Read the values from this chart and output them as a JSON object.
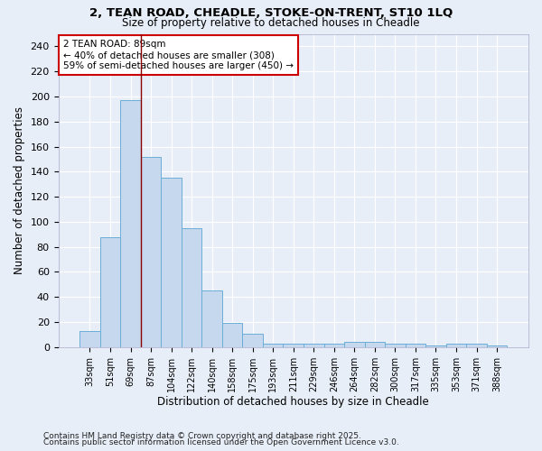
{
  "title1": "2, TEAN ROAD, CHEADLE, STOKE-ON-TRENT, ST10 1LQ",
  "title2": "Size of property relative to detached houses in Cheadle",
  "xlabel": "Distribution of detached houses by size in Cheadle",
  "ylabel": "Number of detached properties",
  "footer1": "Contains HM Land Registry data © Crown copyright and database right 2025.",
  "footer2": "Contains public sector information licensed under the Open Government Licence v3.0.",
  "categories": [
    "33sqm",
    "51sqm",
    "69sqm",
    "87sqm",
    "104sqm",
    "122sqm",
    "140sqm",
    "158sqm",
    "175sqm",
    "193sqm",
    "211sqm",
    "229sqm",
    "246sqm",
    "264sqm",
    "282sqm",
    "300sqm",
    "317sqm",
    "335sqm",
    "353sqm",
    "371sqm",
    "388sqm"
  ],
  "values": [
    13,
    88,
    197,
    152,
    135,
    95,
    45,
    19,
    11,
    3,
    3,
    3,
    3,
    4,
    4,
    3,
    3,
    1,
    3,
    3,
    1
  ],
  "bar_color": "#c5d8ed",
  "bar_edge_color": "#6aaed6",
  "background_color": "#e8eef8",
  "vline_x": 2.5,
  "vline_color": "#8b0000",
  "annotation_text": "2 TEAN ROAD: 89sqm\n← 40% of detached houses are smaller (308)\n59% of semi-detached houses are larger (450) →",
  "annotation_box_color": "#ffffff",
  "annotation_box_edge": "#cc0000",
  "ylim": [
    0,
    250
  ],
  "yticks": [
    0,
    20,
    40,
    60,
    80,
    100,
    120,
    140,
    160,
    180,
    200,
    220,
    240
  ]
}
